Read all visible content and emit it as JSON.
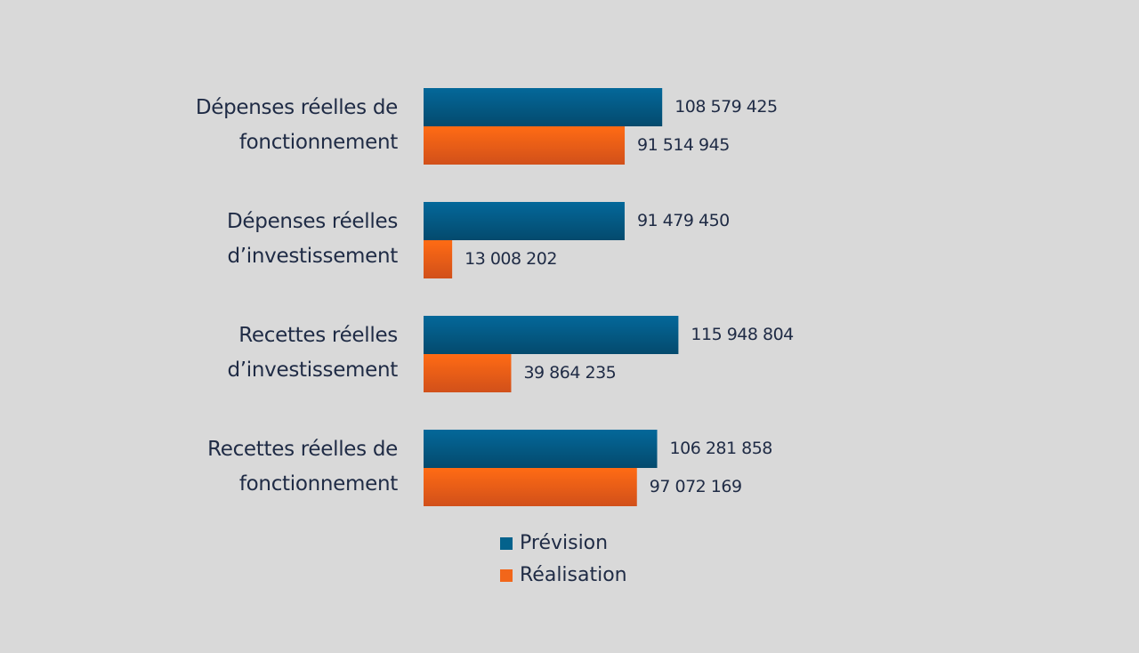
{
  "chart_data": {
    "type": "bar",
    "orientation": "horizontal",
    "categories": [
      "Dépenses réelles de fonctionnement",
      "Dépenses réelles d’investissement",
      "Recettes réelles d’investissement",
      "Recettes réelles de fonctionnement"
    ],
    "category_lines": [
      [
        "Dépenses réelles de",
        "fonctionnement"
      ],
      [
        "Dépenses réelles",
        "d’investissement"
      ],
      [
        "Recettes réelles",
        "d’investissement"
      ],
      [
        "Recettes réelles de",
        "fonctionnement"
      ]
    ],
    "series": [
      {
        "name": "Prévision",
        "color": "#03628c",
        "values": [
          108579425,
          91479450,
          115948804,
          106281858
        ],
        "labels": [
          "108 579 425",
          "91 479 450",
          "115 948 804",
          "106 281 858"
        ]
      },
      {
        "name": "Réalisation",
        "color": "#f2661a",
        "values": [
          91514945,
          13008202,
          39864235,
          97072169
        ],
        "labels": [
          "91 514 945",
          "13 008 202",
          "39 864 235",
          "97 072 169"
        ]
      }
    ],
    "xlim": [
      0,
      200000000
    ],
    "grid": false,
    "axes_visible": false,
    "legend_position": "bottom",
    "background": "#d9d9d9"
  }
}
